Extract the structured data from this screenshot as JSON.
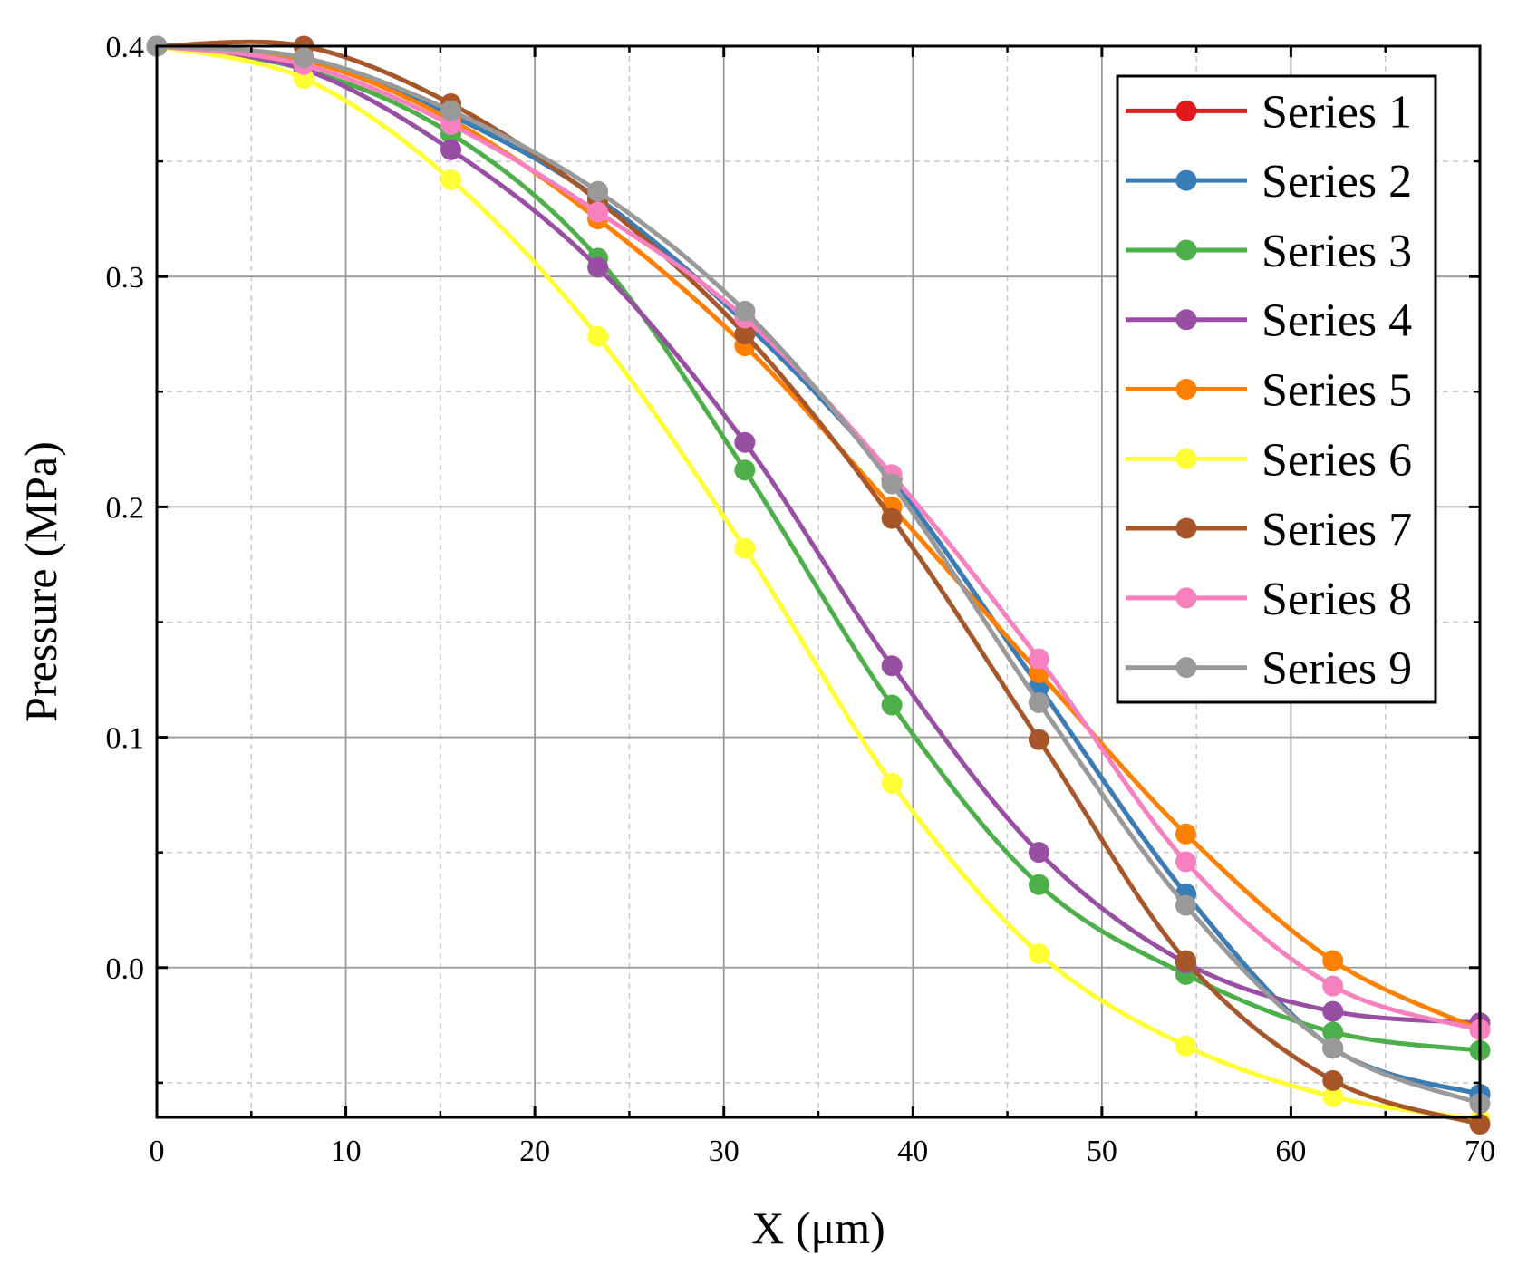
{
  "chart_data": {
    "type": "line",
    "title": "",
    "xlabel": "X (μm)",
    "ylabel": "Pressure (MPa)",
    "xlim": [
      0,
      70
    ],
    "ylim": [
      -0.065,
      0.4
    ],
    "xticks": [
      0,
      10,
      20,
      30,
      40,
      50,
      60,
      70
    ],
    "xtick_labels": [
      "0",
      "10",
      "20",
      "30",
      "40",
      "50",
      "60",
      "70"
    ],
    "yticks": [
      0.0,
      0.1,
      0.2,
      0.3,
      0.4
    ],
    "ytick_labels": [
      "0.0",
      "0.1",
      "0.2",
      "0.3",
      "0.4"
    ],
    "grid": true,
    "legend_position": "top-right",
    "x": [
      0,
      7.78,
      15.56,
      23.33,
      31.11,
      38.89,
      46.67,
      54.44,
      62.22,
      70
    ],
    "series": [
      {
        "name": "Series 1",
        "color": "#e31a1c",
        "values": [
          0.4,
          0.394,
          0.37,
          0.334,
          0.28,
          0.212,
          0.122,
          0.032,
          -0.035,
          -0.055
        ]
      },
      {
        "name": "Series 2",
        "color": "#377eb8",
        "values": [
          0.4,
          0.394,
          0.37,
          0.334,
          0.28,
          0.212,
          0.122,
          0.032,
          -0.035,
          -0.055
        ]
      },
      {
        "name": "Series 3",
        "color": "#4daf4a",
        "values": [
          0.4,
          0.39,
          0.362,
          0.308,
          0.216,
          0.114,
          0.036,
          -0.003,
          -0.028,
          -0.036
        ]
      },
      {
        "name": "Series 4",
        "color": "#984ea3",
        "values": [
          0.4,
          0.39,
          0.355,
          0.304,
          0.228,
          0.131,
          0.05,
          0.002,
          -0.019,
          -0.024
        ]
      },
      {
        "name": "Series 5",
        "color": "#ff7f00",
        "values": [
          0.4,
          0.394,
          0.368,
          0.325,
          0.27,
          0.2,
          0.128,
          0.058,
          0.003,
          -0.027
        ]
      },
      {
        "name": "Series 6",
        "color": "#ffff33",
        "values": [
          0.4,
          0.386,
          0.342,
          0.274,
          0.182,
          0.08,
          0.006,
          -0.034,
          -0.056,
          -0.066
        ]
      },
      {
        "name": "Series 7",
        "color": "#a65628",
        "values": [
          0.4,
          0.4,
          0.375,
          0.333,
          0.275,
          0.195,
          0.099,
          0.003,
          -0.049,
          -0.068
        ]
      },
      {
        "name": "Series 8",
        "color": "#f781bf",
        "values": [
          0.4,
          0.392,
          0.366,
          0.328,
          0.282,
          0.214,
          0.134,
          0.046,
          -0.008,
          -0.027
        ]
      },
      {
        "name": "Series 9",
        "color": "#999999",
        "values": [
          0.4,
          0.395,
          0.372,
          0.337,
          0.285,
          0.21,
          0.115,
          0.027,
          -0.035,
          -0.059
        ]
      }
    ]
  }
}
